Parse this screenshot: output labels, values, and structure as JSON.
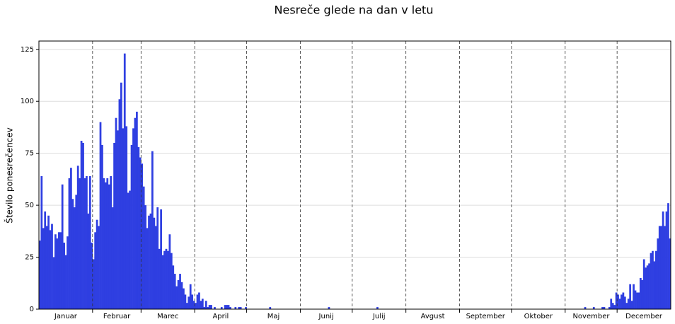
{
  "chart_data": {
    "type": "bar",
    "title": "Nesreče glede na dan v letu",
    "ylabel": "Število ponesrečencev",
    "color": "#2b3be0",
    "grid": true,
    "xlim": [
      0,
      365
    ],
    "ylim": [
      0,
      129
    ],
    "yticks": [
      0,
      25,
      50,
      75,
      100,
      125
    ],
    "xticks": [
      {
        "value": 15.5,
        "label": "Januar"
      },
      {
        "value": 45,
        "label": "Februar"
      },
      {
        "value": 74.5,
        "label": "Marec"
      },
      {
        "value": 105,
        "label": "April"
      },
      {
        "value": 135.5,
        "label": "Maj"
      },
      {
        "value": 166,
        "label": "Junij"
      },
      {
        "value": 196.5,
        "label": "Julij"
      },
      {
        "value": 227.5,
        "label": "Avgust"
      },
      {
        "value": 258,
        "label": "September"
      },
      {
        "value": 288.5,
        "label": "Oktober"
      },
      {
        "value": 319,
        "label": "November"
      },
      {
        "value": 349.5,
        "label": "December"
      }
    ],
    "vlines": [
      31,
      59,
      90,
      120,
      151,
      181,
      212,
      243,
      273,
      304,
      334
    ],
    "values": [
      33,
      64,
      39,
      47,
      40,
      45,
      38,
      41,
      25,
      36,
      34,
      37,
      37,
      60,
      32,
      26,
      35,
      63,
      68,
      53,
      49,
      55,
      69,
      63,
      81,
      80,
      63,
      64,
      46,
      64,
      32,
      24,
      37,
      43,
      40,
      90,
      79,
      63,
      61,
      63,
      60,
      64,
      49,
      80,
      92,
      86,
      101,
      109,
      87,
      123,
      88,
      56,
      57,
      79,
      87,
      92,
      95,
      78,
      73,
      70,
      59,
      50,
      39,
      45,
      46,
      76,
      44,
      40,
      49,
      29,
      48,
      26,
      28,
      29,
      28,
      36,
      27,
      21,
      17,
      11,
      14,
      17,
      13,
      10,
      7,
      3,
      6,
      12,
      7,
      4,
      3,
      7,
      8,
      4,
      5,
      1,
      4,
      1,
      2,
      2,
      0,
      1,
      0,
      0,
      0,
      1,
      0,
      2,
      2,
      2,
      1,
      0,
      0,
      1,
      0,
      1,
      1,
      0,
      0,
      1,
      0,
      0,
      0,
      0,
      0,
      0,
      0,
      0,
      0,
      0,
      0,
      0,
      0,
      1,
      0,
      0,
      0,
      0,
      0,
      0,
      0,
      0,
      0,
      0,
      0,
      0,
      0,
      0,
      0,
      0,
      0,
      0,
      0,
      0,
      0,
      0,
      0,
      0,
      0,
      0,
      0,
      0,
      0,
      0,
      0,
      0,
      0,
      1,
      0,
      0,
      0,
      0,
      0,
      0,
      0,
      0,
      0,
      0,
      0,
      0,
      0,
      0,
      0,
      0,
      0,
      0,
      0,
      0,
      0,
      0,
      0,
      0,
      0,
      0,
      0,
      1,
      0,
      0,
      0,
      0,
      0,
      0,
      0,
      0,
      0,
      0,
      0,
      0,
      0,
      0,
      0,
      0,
      0,
      0,
      0,
      0,
      0,
      0,
      0,
      0,
      0,
      0,
      0,
      0,
      0,
      0,
      0,
      0,
      0,
      0,
      0,
      0,
      0,
      0,
      0,
      0,
      0,
      0,
      0,
      0,
      0,
      0,
      0,
      0,
      0,
      0,
      0,
      0,
      0,
      0,
      0,
      0,
      0,
      0,
      0,
      0,
      0,
      0,
      0,
      0,
      0,
      0,
      0,
      0,
      0,
      0,
      0,
      0,
      0,
      0,
      0,
      0,
      0,
      0,
      0,
      0,
      0,
      0,
      0,
      0,
      0,
      0,
      0,
      0,
      0,
      0,
      0,
      0,
      0,
      0,
      0,
      0,
      0,
      0,
      0,
      0,
      0,
      0,
      0,
      0,
      0,
      0,
      0,
      0,
      0,
      0,
      0,
      0,
      0,
      0,
      0,
      0,
      0,
      0,
      0,
      1,
      0,
      0,
      0,
      0,
      1,
      0,
      0,
      0,
      0,
      1,
      1,
      0,
      0,
      1,
      5,
      3,
      2,
      8,
      7,
      5,
      7,
      8,
      6,
      3,
      5,
      12,
      4,
      12,
      9,
      8,
      8,
      15,
      14,
      24,
      20,
      21,
      22,
      27,
      28,
      23,
      28,
      34,
      40,
      40,
      47,
      40,
      47,
      51,
      34
    ]
  }
}
